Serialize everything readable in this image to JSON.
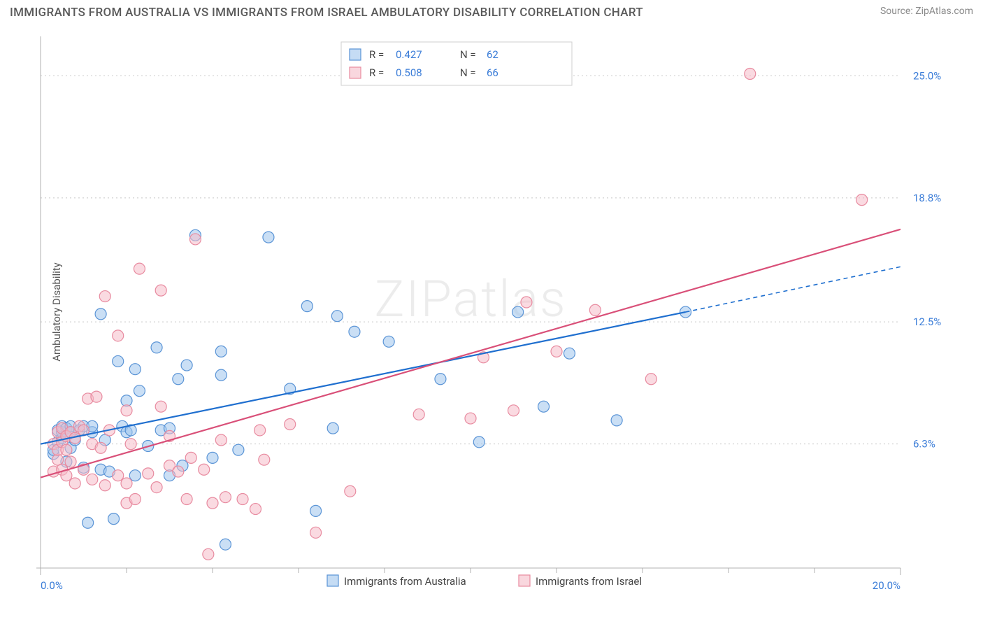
{
  "title": "IMMIGRANTS FROM AUSTRALIA VS IMMIGRANTS FROM ISRAEL AMBULATORY DISABILITY CORRELATION CHART",
  "source_label": "Source:",
  "source_name": "ZipAtlas.com",
  "y_axis_label": "Ambulatory Disability",
  "watermark": "ZIPatlas",
  "chart": {
    "type": "scatter",
    "background_color": "#ffffff",
    "grid_color": "#c8c8c8",
    "axis_color": "#b0b0b0",
    "xlim": [
      0.0,
      20.0
    ],
    "ylim": [
      0.0,
      27.0
    ],
    "x_ticks": [
      0.0,
      20.0
    ],
    "x_tick_labels": [
      "0.0%",
      "20.0%"
    ],
    "x_minor_ticks": [
      2.0,
      4.0,
      6.0,
      8.0,
      10.0,
      12.0,
      14.0,
      16.0,
      18.0
    ],
    "y_ticks": [
      6.3,
      12.5,
      18.8,
      25.0
    ],
    "y_tick_labels": [
      "6.3%",
      "12.5%",
      "18.8%",
      "25.0%"
    ],
    "marker_radius": 8,
    "marker_stroke_width": 1.2,
    "trend_line_width": 2.2,
    "series": [
      {
        "name": "Immigrants from Australia",
        "color": "#9fc4ed",
        "stroke": "#5a94d6",
        "line_color": "#1f6fcf",
        "r_value": "0.427",
        "n_value": "62",
        "trend": {
          "x1": 0.0,
          "y1": 6.3,
          "x2": 15.0,
          "y2": 13.0
        },
        "trend_dash": {
          "x1": 15.0,
          "y1": 13.0,
          "x2": 20.0,
          "y2": 15.3
        },
        "points": [
          [
            0.3,
            5.8
          ],
          [
            0.3,
            6.0
          ],
          [
            0.4,
            6.4
          ],
          [
            0.4,
            7.0
          ],
          [
            0.5,
            6.6
          ],
          [
            0.5,
            6.9
          ],
          [
            0.5,
            7.2
          ],
          [
            0.6,
            5.4
          ],
          [
            0.6,
            6.7
          ],
          [
            0.6,
            7.1
          ],
          [
            0.7,
            6.1
          ],
          [
            0.7,
            6.9
          ],
          [
            0.7,
            7.2
          ],
          [
            0.8,
            6.5
          ],
          [
            0.9,
            7.0
          ],
          [
            1.0,
            5.1
          ],
          [
            1.0,
            7.2
          ],
          [
            1.1,
            2.3
          ],
          [
            1.2,
            6.9
          ],
          [
            1.2,
            7.2
          ],
          [
            1.4,
            5.0
          ],
          [
            1.4,
            12.9
          ],
          [
            1.5,
            6.5
          ],
          [
            1.6,
            4.9
          ],
          [
            1.7,
            2.5
          ],
          [
            1.8,
            10.5
          ],
          [
            1.9,
            7.2
          ],
          [
            2.0,
            6.9
          ],
          [
            2.0,
            8.5
          ],
          [
            2.1,
            7.0
          ],
          [
            2.2,
            4.7
          ],
          [
            2.2,
            10.1
          ],
          [
            2.3,
            9.0
          ],
          [
            2.5,
            6.2
          ],
          [
            2.7,
            11.2
          ],
          [
            2.8,
            7.0
          ],
          [
            3.0,
            4.7
          ],
          [
            3.0,
            7.1
          ],
          [
            3.2,
            9.6
          ],
          [
            3.3,
            5.2
          ],
          [
            3.4,
            10.3
          ],
          [
            3.6,
            16.9
          ],
          [
            4.0,
            5.6
          ],
          [
            4.2,
            9.8
          ],
          [
            4.2,
            11.0
          ],
          [
            4.3,
            1.2
          ],
          [
            4.6,
            6.0
          ],
          [
            5.3,
            16.8
          ],
          [
            5.8,
            9.1
          ],
          [
            6.2,
            13.3
          ],
          [
            6.4,
            2.9
          ],
          [
            6.8,
            7.1
          ],
          [
            6.9,
            12.8
          ],
          [
            7.3,
            12.0
          ],
          [
            8.1,
            11.5
          ],
          [
            9.3,
            9.6
          ],
          [
            10.2,
            6.4
          ],
          [
            11.1,
            13.0
          ],
          [
            11.7,
            8.2
          ],
          [
            12.3,
            10.9
          ],
          [
            13.4,
            7.5
          ],
          [
            15.0,
            13.0
          ]
        ]
      },
      {
        "name": "Immigrants from Israel",
        "color": "#f5bcc8",
        "stroke": "#e88ba0",
        "line_color": "#d94f78",
        "r_value": "0.508",
        "n_value": "66",
        "trend": {
          "x1": 0.0,
          "y1": 4.6,
          "x2": 20.0,
          "y2": 17.2
        },
        "points": [
          [
            0.3,
            4.9
          ],
          [
            0.3,
            6.3
          ],
          [
            0.4,
            5.5
          ],
          [
            0.4,
            6.0
          ],
          [
            0.4,
            6.9
          ],
          [
            0.5,
            5.0
          ],
          [
            0.5,
            6.4
          ],
          [
            0.5,
            7.1
          ],
          [
            0.6,
            4.7
          ],
          [
            0.6,
            6.0
          ],
          [
            0.6,
            6.7
          ],
          [
            0.7,
            5.4
          ],
          [
            0.7,
            6.9
          ],
          [
            0.8,
            4.3
          ],
          [
            0.8,
            6.6
          ],
          [
            0.9,
            7.2
          ],
          [
            1.0,
            5.0
          ],
          [
            1.0,
            7.0
          ],
          [
            1.1,
            8.6
          ],
          [
            1.2,
            4.5
          ],
          [
            1.2,
            6.3
          ],
          [
            1.3,
            8.7
          ],
          [
            1.4,
            6.1
          ],
          [
            1.5,
            4.2
          ],
          [
            1.5,
            13.8
          ],
          [
            1.6,
            7.0
          ],
          [
            1.8,
            4.7
          ],
          [
            1.8,
            11.8
          ],
          [
            2.0,
            3.3
          ],
          [
            2.0,
            4.3
          ],
          [
            2.0,
            8.0
          ],
          [
            2.1,
            6.3
          ],
          [
            2.2,
            3.5
          ],
          [
            2.3,
            15.2
          ],
          [
            2.5,
            4.8
          ],
          [
            2.7,
            4.1
          ],
          [
            2.8,
            8.2
          ],
          [
            2.8,
            14.1
          ],
          [
            3.0,
            5.2
          ],
          [
            3.0,
            6.7
          ],
          [
            3.2,
            4.9
          ],
          [
            3.4,
            3.5
          ],
          [
            3.5,
            5.6
          ],
          [
            3.6,
            16.7
          ],
          [
            3.8,
            5.0
          ],
          [
            3.9,
            0.7
          ],
          [
            4.0,
            3.3
          ],
          [
            4.2,
            6.5
          ],
          [
            4.3,
            3.6
          ],
          [
            4.7,
            3.5
          ],
          [
            5.0,
            3.0
          ],
          [
            5.1,
            7.0
          ],
          [
            5.2,
            5.5
          ],
          [
            5.8,
            7.3
          ],
          [
            6.4,
            1.8
          ],
          [
            7.2,
            3.9
          ],
          [
            8.8,
            7.8
          ],
          [
            10.0,
            7.6
          ],
          [
            10.3,
            10.7
          ],
          [
            11.0,
            8.0
          ],
          [
            11.3,
            13.5
          ],
          [
            12.0,
            11.0
          ],
          [
            12.9,
            13.1
          ],
          [
            14.2,
            9.6
          ],
          [
            16.5,
            25.1
          ],
          [
            19.1,
            18.7
          ]
        ]
      }
    ]
  },
  "correlation_legend": {
    "r_label": "R =",
    "n_label": "N ="
  }
}
